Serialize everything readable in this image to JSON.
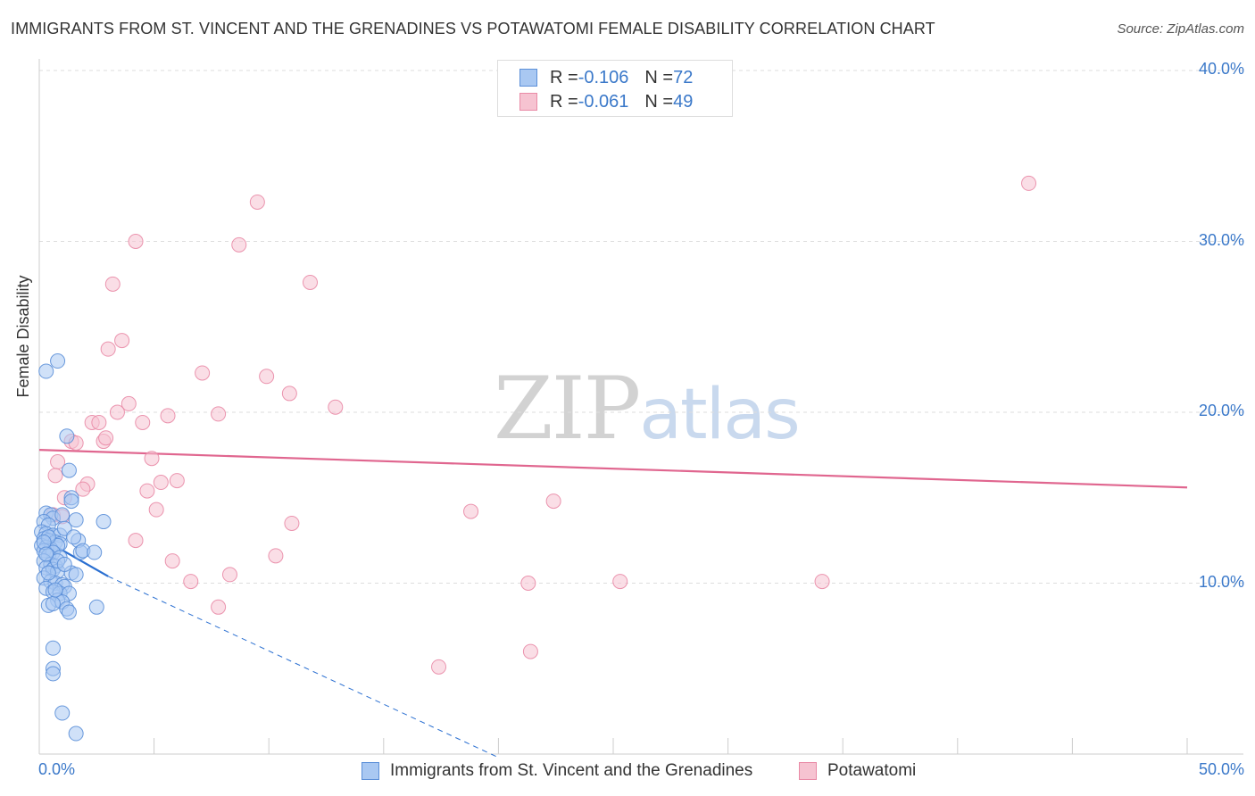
{
  "title": "IMMIGRANTS FROM ST. VINCENT AND THE GRENADINES VS POTAWATOMI FEMALE DISABILITY CORRELATION CHART",
  "source": "Source: ZipAtlas.com",
  "watermark": {
    "zip": "ZIP",
    "atlas": "atlas"
  },
  "legend": {
    "rows": [
      {
        "r_label": "R = ",
        "r_value": "-0.106",
        "n_label": "N = ",
        "n_value": "72"
      },
      {
        "r_label": "R = ",
        "r_value": "-0.061",
        "n_label": "N = ",
        "n_value": "49"
      }
    ]
  },
  "colors": {
    "series1_fill": "#a9c8f2",
    "series1_stroke": "#5b8fd8",
    "series1_line": "#2a6fd1",
    "series2_fill": "#f6c3d1",
    "series2_stroke": "#e98aa6",
    "series2_line": "#e0668f",
    "tick_text": "#3a78c9",
    "grid": "#dddddd"
  },
  "chart_data": {
    "type": "scatter",
    "title": "IMMIGRANTS FROM ST. VINCENT AND THE GRENADINES VS POTAWATOMI FEMALE DISABILITY CORRELATION CHART",
    "xlabel": "",
    "ylabel": "Female Disability",
    "xlim": [
      0,
      50
    ],
    "ylim": [
      0,
      40
    ],
    "x_ticks_labeled": [
      "0.0%",
      "50.0%"
    ],
    "y_ticks_labeled": [
      "10.0%",
      "20.0%",
      "30.0%",
      "40.0%"
    ],
    "y_tick_values": [
      10,
      20,
      30,
      40
    ],
    "grid": "horizontal dashed",
    "legend_position": "top-center",
    "series": [
      {
        "name": "Immigrants from St. Vincent and the Grenadines",
        "R": -0.106,
        "N": 72,
        "trend": {
          "x": [
            0,
            3
          ],
          "y": [
            12.7,
            10.4
          ],
          "extended_to": [
            20,
            -0.2
          ]
        },
        "points": [
          [
            0.3,
            22.4
          ],
          [
            0.8,
            23.0
          ],
          [
            1.2,
            18.6
          ],
          [
            1.3,
            16.6
          ],
          [
            1.4,
            15.0
          ],
          [
            1.4,
            14.8
          ],
          [
            0.3,
            14.1
          ],
          [
            0.5,
            14.0
          ],
          [
            0.6,
            13.8
          ],
          [
            1.0,
            14.0
          ],
          [
            0.2,
            13.6
          ],
          [
            0.4,
            13.4
          ],
          [
            1.6,
            13.7
          ],
          [
            2.8,
            13.6
          ],
          [
            0.1,
            13.0
          ],
          [
            0.3,
            12.9
          ],
          [
            0.6,
            12.8
          ],
          [
            0.9,
            12.8
          ],
          [
            1.1,
            13.2
          ],
          [
            0.2,
            12.6
          ],
          [
            0.4,
            12.5
          ],
          [
            0.7,
            12.4
          ],
          [
            0.9,
            12.3
          ],
          [
            0.1,
            12.2
          ],
          [
            0.3,
            12.1
          ],
          [
            0.5,
            12.0
          ],
          [
            0.8,
            12.2
          ],
          [
            1.7,
            12.5
          ],
          [
            0.2,
            11.9
          ],
          [
            0.6,
            11.8
          ],
          [
            1.8,
            11.8
          ],
          [
            1.9,
            11.9
          ],
          [
            2.4,
            11.8
          ],
          [
            0.4,
            11.6
          ],
          [
            0.9,
            11.5
          ],
          [
            0.2,
            11.3
          ],
          [
            0.5,
            11.1
          ],
          [
            0.7,
            11.0
          ],
          [
            0.3,
            10.9
          ],
          [
            0.6,
            10.8
          ],
          [
            0.8,
            10.7
          ],
          [
            1.4,
            10.6
          ],
          [
            1.6,
            10.5
          ],
          [
            0.2,
            10.3
          ],
          [
            0.5,
            10.1
          ],
          [
            0.7,
            10.0
          ],
          [
            1.0,
            9.9
          ],
          [
            1.1,
            9.8
          ],
          [
            0.3,
            9.7
          ],
          [
            0.6,
            9.5
          ],
          [
            0.9,
            9.4
          ],
          [
            1.3,
            9.4
          ],
          [
            0.8,
            9.0
          ],
          [
            1.0,
            8.9
          ],
          [
            0.4,
            8.7
          ],
          [
            0.6,
            8.8
          ],
          [
            1.2,
            8.5
          ],
          [
            2.5,
            8.6
          ],
          [
            1.3,
            8.3
          ],
          [
            0.6,
            6.2
          ],
          [
            0.6,
            5.0
          ],
          [
            0.6,
            4.7
          ],
          [
            1.0,
            2.4
          ],
          [
            1.6,
            1.2
          ],
          [
            0.4,
            12.7
          ],
          [
            0.2,
            12.4
          ],
          [
            0.8,
            11.3
          ],
          [
            1.1,
            11.1
          ],
          [
            0.7,
            9.6
          ],
          [
            0.4,
            10.6
          ],
          [
            1.5,
            12.7
          ],
          [
            0.3,
            11.7
          ]
        ]
      },
      {
        "name": "Potawatomi",
        "R": -0.061,
        "N": 49,
        "trend": {
          "x": [
            0,
            50
          ],
          "y": [
            17.8,
            15.6
          ]
        },
        "points": [
          [
            43.1,
            33.4
          ],
          [
            9.5,
            32.3
          ],
          [
            4.2,
            30.0
          ],
          [
            8.7,
            29.8
          ],
          [
            3.2,
            27.5
          ],
          [
            11.8,
            27.6
          ],
          [
            3.6,
            24.2
          ],
          [
            3.0,
            23.7
          ],
          [
            7.1,
            22.3
          ],
          [
            9.9,
            22.1
          ],
          [
            10.9,
            21.1
          ],
          [
            3.9,
            20.5
          ],
          [
            12.9,
            20.3
          ],
          [
            3.4,
            20.0
          ],
          [
            5.6,
            19.8
          ],
          [
            7.8,
            19.9
          ],
          [
            2.3,
            19.4
          ],
          [
            2.6,
            19.4
          ],
          [
            4.5,
            19.4
          ],
          [
            1.4,
            18.3
          ],
          [
            1.6,
            18.2
          ],
          [
            2.8,
            18.3
          ],
          [
            4.9,
            17.3
          ],
          [
            0.8,
            17.1
          ],
          [
            0.7,
            16.3
          ],
          [
            6.0,
            16.0
          ],
          [
            5.3,
            15.9
          ],
          [
            2.1,
            15.8
          ],
          [
            1.9,
            15.5
          ],
          [
            4.7,
            15.4
          ],
          [
            1.1,
            15.0
          ],
          [
            22.4,
            14.8
          ],
          [
            18.8,
            14.2
          ],
          [
            5.1,
            14.3
          ],
          [
            0.6,
            14.0
          ],
          [
            11.0,
            13.5
          ],
          [
            4.2,
            12.5
          ],
          [
            10.3,
            11.6
          ],
          [
            5.8,
            11.3
          ],
          [
            8.3,
            10.5
          ],
          [
            6.6,
            10.1
          ],
          [
            21.3,
            10.0
          ],
          [
            25.3,
            10.1
          ],
          [
            34.1,
            10.1
          ],
          [
            7.8,
            8.6
          ],
          [
            21.4,
            6.0
          ],
          [
            17.4,
            5.1
          ],
          [
            1.0,
            13.9
          ],
          [
            2.9,
            18.5
          ]
        ]
      }
    ]
  }
}
